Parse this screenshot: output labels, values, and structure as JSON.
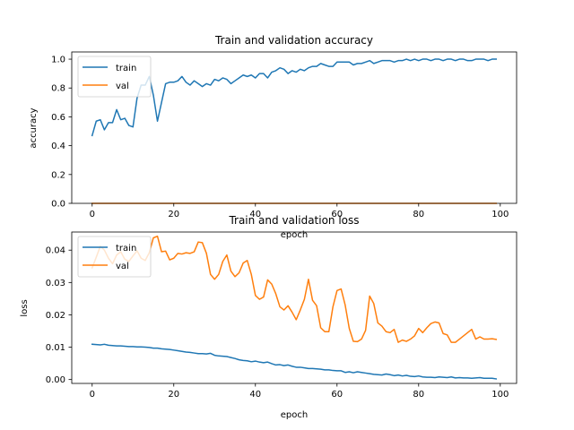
{
  "colors": {
    "train": "#1f77b4",
    "val": "#ff7f0e"
  },
  "chart_data": [
    {
      "type": "line",
      "title": "Train and validation accuracy",
      "xlabel": "epoch",
      "ylabel": "accuracy",
      "xlim": [
        -5,
        104
      ],
      "ylim": [
        0,
        1.05
      ],
      "xticks": [
        0,
        20,
        40,
        60,
        80,
        100
      ],
      "yticks": [
        0.0,
        0.2,
        0.4,
        0.6,
        0.8,
        1.0
      ],
      "xtick_labels": [
        "0",
        "20",
        "40",
        "60",
        "80",
        "100"
      ],
      "ytick_labels": [
        "0.0",
        "0.2",
        "0.4",
        "0.6",
        "0.8",
        "1.0"
      ],
      "legend": "upper-left",
      "grid": false,
      "series": [
        {
          "name": "train",
          "color": "#1f77b4",
          "x": [
            0,
            1,
            2,
            3,
            4,
            5,
            6,
            7,
            8,
            9,
            10,
            11,
            12,
            13,
            14,
            15,
            16,
            17,
            18,
            19,
            20,
            21,
            22,
            23,
            24,
            25,
            26,
            27,
            28,
            29,
            30,
            31,
            32,
            33,
            34,
            35,
            36,
            37,
            38,
            39,
            40,
            41,
            42,
            43,
            44,
            45,
            46,
            47,
            48,
            49,
            50,
            51,
            52,
            53,
            54,
            55,
            56,
            57,
            58,
            59,
            60,
            61,
            62,
            63,
            64,
            65,
            66,
            67,
            68,
            69,
            70,
            71,
            72,
            73,
            74,
            75,
            76,
            77,
            78,
            79,
            80,
            81,
            82,
            83,
            84,
            85,
            86,
            87,
            88,
            89,
            90,
            91,
            92,
            93,
            94,
            95,
            96,
            97,
            98,
            99
          ],
          "values": [
            0.47,
            0.57,
            0.58,
            0.51,
            0.56,
            0.56,
            0.65,
            0.58,
            0.59,
            0.54,
            0.53,
            0.73,
            0.82,
            0.82,
            0.88,
            0.75,
            0.57,
            0.7,
            0.83,
            0.84,
            0.84,
            0.85,
            0.88,
            0.84,
            0.82,
            0.85,
            0.83,
            0.81,
            0.83,
            0.82,
            0.86,
            0.85,
            0.87,
            0.86,
            0.83,
            0.85,
            0.87,
            0.89,
            0.88,
            0.89,
            0.87,
            0.9,
            0.9,
            0.87,
            0.91,
            0.92,
            0.94,
            0.93,
            0.9,
            0.92,
            0.91,
            0.93,
            0.92,
            0.94,
            0.95,
            0.95,
            0.97,
            0.96,
            0.95,
            0.95,
            0.98,
            0.98,
            0.98,
            0.98,
            0.96,
            0.97,
            0.97,
            0.98,
            0.99,
            0.97,
            0.98,
            0.99,
            0.99,
            0.99,
            0.98,
            0.99,
            0.99,
            1.0,
            0.99,
            1.0,
            0.99,
            1.0,
            1.0,
            0.99,
            1.0,
            1.0,
            0.99,
            1.0,
            1.0,
            0.99,
            1.0,
            1.0,
            0.99,
            0.99,
            1.0,
            1.0,
            1.0,
            0.99,
            1.0,
            1.0
          ]
        },
        {
          "name": "val",
          "color": "#ff7f0e",
          "x": [
            0,
            99
          ],
          "values": [
            0.0,
            0.0
          ]
        }
      ]
    },
    {
      "type": "line",
      "title": "Train and validation loss",
      "xlabel": "epoch",
      "ylabel": "loss",
      "xlim": [
        -5,
        104
      ],
      "ylim": [
        -0.0012,
        0.0456
      ],
      "xticks": [
        0,
        20,
        40,
        60,
        80,
        100
      ],
      "yticks": [
        0.0,
        0.01,
        0.02,
        0.03,
        0.04
      ],
      "xtick_labels": [
        "0",
        "20",
        "40",
        "60",
        "80",
        "100"
      ],
      "ytick_labels": [
        "0.00",
        "0.01",
        "0.02",
        "0.03",
        "0.04"
      ],
      "legend": "upper-left",
      "grid": false,
      "series": [
        {
          "name": "train",
          "color": "#1f77b4",
          "x": [
            0,
            1,
            2,
            3,
            4,
            5,
            6,
            7,
            8,
            9,
            10,
            11,
            12,
            13,
            14,
            15,
            16,
            17,
            18,
            19,
            20,
            21,
            22,
            23,
            24,
            25,
            26,
            27,
            28,
            29,
            30,
            31,
            32,
            33,
            34,
            35,
            36,
            37,
            38,
            39,
            40,
            41,
            42,
            43,
            44,
            45,
            46,
            47,
            48,
            49,
            50,
            51,
            52,
            53,
            54,
            55,
            56,
            57,
            58,
            59,
            60,
            61,
            62,
            63,
            64,
            65,
            66,
            67,
            68,
            69,
            70,
            71,
            72,
            73,
            74,
            75,
            76,
            77,
            78,
            79,
            80,
            81,
            82,
            83,
            84,
            85,
            86,
            87,
            88,
            89,
            90,
            91,
            92,
            93,
            94,
            95,
            96,
            97,
            98,
            99
          ],
          "values": [
            0.0109,
            0.0108,
            0.0107,
            0.0109,
            0.0106,
            0.0105,
            0.0104,
            0.0104,
            0.0103,
            0.0102,
            0.0102,
            0.0101,
            0.0101,
            0.01,
            0.0099,
            0.0097,
            0.0097,
            0.0095,
            0.0094,
            0.0093,
            0.0091,
            0.0089,
            0.0087,
            0.0085,
            0.0084,
            0.0082,
            0.008,
            0.008,
            0.0079,
            0.0081,
            0.0075,
            0.0073,
            0.0072,
            0.0071,
            0.0068,
            0.0065,
            0.0061,
            0.0059,
            0.0058,
            0.0055,
            0.0057,
            0.0054,
            0.0052,
            0.0054,
            0.0049,
            0.0045,
            0.0046,
            0.0043,
            0.0045,
            0.0041,
            0.0038,
            0.0038,
            0.0036,
            0.0034,
            0.0034,
            0.0033,
            0.0032,
            0.003,
            0.003,
            0.0028,
            0.0027,
            0.0027,
            0.0022,
            0.0024,
            0.0021,
            0.0024,
            0.0022,
            0.002,
            0.0018,
            0.0016,
            0.0015,
            0.0014,
            0.0017,
            0.0015,
            0.0012,
            0.0014,
            0.0011,
            0.0013,
            0.001,
            0.0009,
            0.0011,
            0.0008,
            0.0007,
            0.0007,
            0.0006,
            0.0008,
            0.0007,
            0.0006,
            0.0008,
            0.0005,
            0.0006,
            0.0005,
            0.0005,
            0.0004,
            0.0005,
            0.0006,
            0.0004,
            0.0004,
            0.0004,
            0.0002
          ]
        },
        {
          "name": "val",
          "color": "#ff7f0e",
          "x": [
            0,
            1,
            2,
            3,
            4,
            5,
            6,
            7,
            8,
            9,
            10,
            11,
            12,
            13,
            14,
            15,
            16,
            17,
            18,
            19,
            20,
            21,
            22,
            23,
            24,
            25,
            26,
            27,
            28,
            29,
            30,
            31,
            32,
            33,
            34,
            35,
            36,
            37,
            38,
            39,
            40,
            41,
            42,
            43,
            44,
            45,
            46,
            47,
            48,
            49,
            50,
            51,
            52,
            53,
            54,
            55,
            56,
            57,
            58,
            59,
            60,
            61,
            62,
            63,
            64,
            65,
            66,
            67,
            68,
            69,
            70,
            71,
            72,
            73,
            74,
            75,
            76,
            77,
            78,
            79,
            80,
            81,
            82,
            83,
            84,
            85,
            86,
            87,
            88,
            89,
            90,
            91,
            92,
            93,
            94,
            95,
            96,
            97,
            98,
            99
          ],
          "values": [
            0.0345,
            0.0378,
            0.0412,
            0.04,
            0.0375,
            0.0358,
            0.0385,
            0.0395,
            0.0372,
            0.0365,
            0.0382,
            0.0398,
            0.0375,
            0.0368,
            0.0392,
            0.0438,
            0.0443,
            0.0395,
            0.0397,
            0.037,
            0.0375,
            0.039,
            0.0388,
            0.0392,
            0.039,
            0.0395,
            0.0425,
            0.0423,
            0.039,
            0.0325,
            0.031,
            0.0325,
            0.0365,
            0.0385,
            0.0335,
            0.0318,
            0.033,
            0.036,
            0.0368,
            0.0325,
            0.026,
            0.0248,
            0.0255,
            0.0308,
            0.0295,
            0.0265,
            0.0225,
            0.0215,
            0.0228,
            0.0208,
            0.0185,
            0.0215,
            0.0248,
            0.031,
            0.0245,
            0.0228,
            0.016,
            0.0148,
            0.0148,
            0.0225,
            0.0275,
            0.028,
            0.023,
            0.0158,
            0.0118,
            0.0117,
            0.0125,
            0.0152,
            0.0258,
            0.0235,
            0.0175,
            0.0165,
            0.0148,
            0.0145,
            0.0155,
            0.0115,
            0.0122,
            0.0118,
            0.0125,
            0.0135,
            0.0158,
            0.0145,
            0.016,
            0.0173,
            0.0178,
            0.0175,
            0.0142,
            0.0138,
            0.0115,
            0.0115,
            0.0125,
            0.0135,
            0.0145,
            0.0155,
            0.0125,
            0.0132,
            0.0125,
            0.0125,
            0.0126,
            0.0124
          ]
        }
      ]
    }
  ]
}
